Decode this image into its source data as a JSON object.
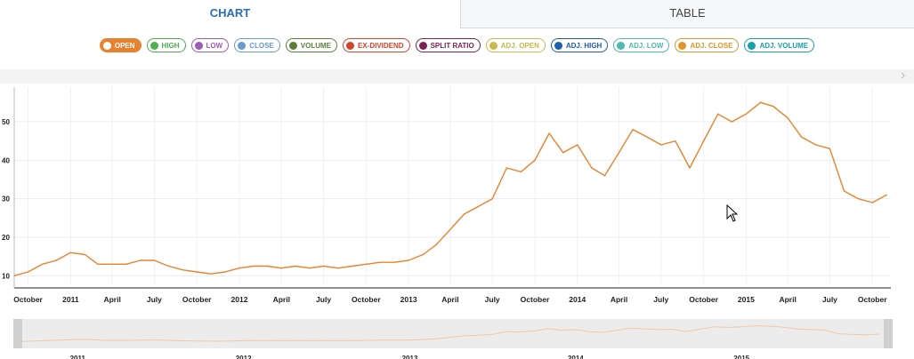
{
  "tabs": {
    "chart": "CHART",
    "table": "TABLE"
  },
  "chips": [
    {
      "label": "OPEN",
      "color": "#e8822e",
      "active": true
    },
    {
      "label": "HIGH",
      "color": "#4caf50",
      "active": false
    },
    {
      "label": "LOW",
      "color": "#9c5bb5",
      "active": false
    },
    {
      "label": "CLOSE",
      "color": "#6a9ad0",
      "active": false
    },
    {
      "label": "VOLUME",
      "color": "#5b7f3a",
      "active": false
    },
    {
      "label": "EX-DIVIDEND",
      "color": "#d0452e",
      "active": false
    },
    {
      "label": "SPLIT RATIO",
      "color": "#7b2250",
      "active": false
    },
    {
      "label": "ADJ. OPEN",
      "color": "#c9b84a",
      "active": false
    },
    {
      "label": "ADJ. HIGH",
      "color": "#1f5ea8",
      "active": false
    },
    {
      "label": "ADJ. LOW",
      "color": "#4fb8b0",
      "active": false
    },
    {
      "label": "ADJ. CLOSE",
      "color": "#e0952b",
      "active": false
    },
    {
      "label": "ADJ. VOLUME",
      "color": "#1a9fa8",
      "active": false
    }
  ],
  "chart_data": {
    "type": "line",
    "series": [
      {
        "color": "#e8822e",
        "x": [
          "2010-09-01",
          "2010-10-01",
          "2010-11-01",
          "2010-12-01",
          "2011-01-01",
          "2011-02-01",
          "2011-03-01",
          "2011-04-01",
          "2011-05-01",
          "2011-06-01",
          "2011-07-01",
          "2011-08-01",
          "2011-09-01",
          "2011-10-01",
          "2011-11-01",
          "2011-12-01",
          "2012-01-01",
          "2012-02-01",
          "2012-03-01",
          "2012-04-01",
          "2012-05-01",
          "2012-06-01",
          "2012-07-01",
          "2012-08-01",
          "2012-09-01",
          "2012-10-01",
          "2012-11-01",
          "2012-12-01",
          "2013-01-01",
          "2013-02-01",
          "2013-03-01",
          "2013-04-01",
          "2013-05-01",
          "2013-06-01",
          "2013-07-01",
          "2013-08-01",
          "2013-09-01",
          "2013-10-01",
          "2013-11-01",
          "2013-12-01",
          "2014-01-01",
          "2014-02-01",
          "2014-03-01",
          "2014-04-01",
          "2014-05-01",
          "2014-06-01",
          "2014-07-01",
          "2014-08-01",
          "2014-09-01",
          "2014-10-01",
          "2014-11-01",
          "2014-12-01",
          "2015-01-01",
          "2015-02-01",
          "2015-03-01",
          "2015-04-01",
          "2015-05-01",
          "2015-06-01",
          "2015-07-01",
          "2015-08-01",
          "2015-09-01",
          "2015-10-01",
          "2015-11-01"
        ],
        "values": [
          10,
          11,
          13,
          14,
          16,
          15.5,
          13,
          13,
          13,
          14,
          14,
          12.5,
          11.5,
          11,
          10.5,
          11,
          12,
          12.5,
          12.5,
          12,
          12.5,
          12,
          12.5,
          12,
          12.5,
          13,
          13.5,
          13.5,
          14,
          15.5,
          18,
          22,
          26,
          28,
          30,
          38,
          37,
          40,
          47,
          42,
          44,
          38,
          36,
          42,
          48,
          46,
          44,
          45,
          38,
          45,
          52,
          50,
          52,
          55,
          54,
          51,
          46,
          44,
          43,
          32,
          30,
          29,
          31
        ]
      }
    ],
    "x_ticks": [
      "October",
      "2011",
      "April",
      "July",
      "October",
      "2012",
      "April",
      "July",
      "October",
      "2013",
      "April",
      "July",
      "October",
      "2014",
      "April",
      "July",
      "October",
      "2015",
      "April",
      "July",
      "October"
    ],
    "y_ticks": [
      "10",
      "20",
      "30",
      "40",
      "50"
    ],
    "ylim": [
      8,
      59
    ],
    "navigator_ticks": [
      "2011",
      "2012",
      "2013",
      "2014",
      "2015"
    ],
    "grid": true,
    "legend": "top-center"
  }
}
